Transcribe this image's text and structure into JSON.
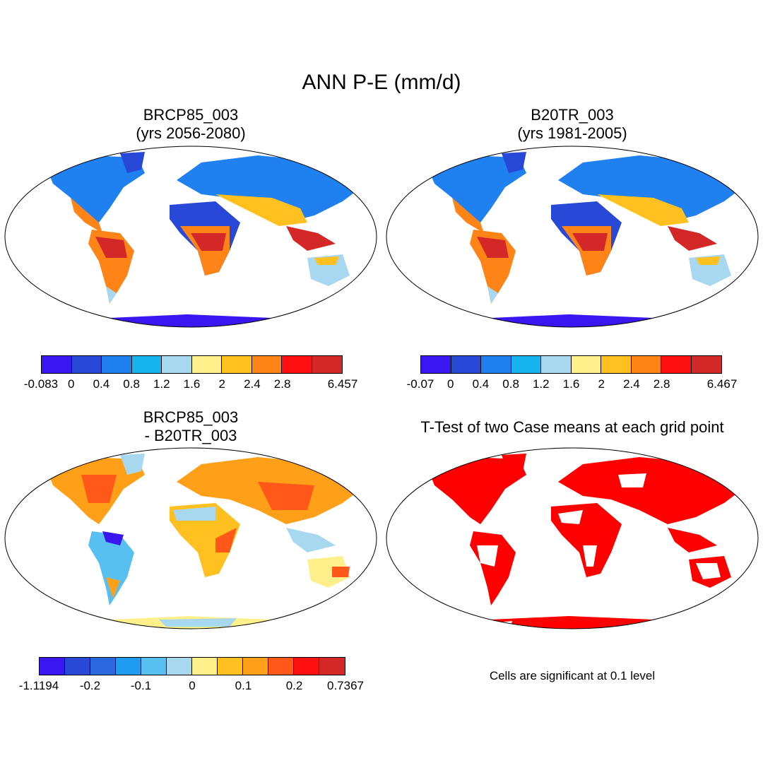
{
  "title": "ANN P-E (mm/d)",
  "panels": {
    "top_left": {
      "title_line1": "BRCP85_003",
      "title_line2": "(yrs 2056-2080)",
      "colorbar": {
        "colors": [
          "#3a16f0",
          "#2848d8",
          "#1f80f0",
          "#18b4f0",
          "#a8d8f0",
          "#fff08c",
          "#ffc020",
          "#ff8418",
          "#ff1010",
          "#d42828"
        ],
        "labels": [
          "-0.083",
          "0",
          "0.4",
          "0.8",
          "1.2",
          "1.6",
          "2",
          "2.4",
          "2.8",
          "6.457"
        ]
      }
    },
    "top_right": {
      "title_line1": "B20TR_003",
      "title_line2": "(yrs 1981-2005)",
      "colorbar": {
        "colors": [
          "#3a16f0",
          "#2848d8",
          "#1f80f0",
          "#18b4f0",
          "#a8d8f0",
          "#fff08c",
          "#ffc020",
          "#ff8418",
          "#ff1010",
          "#d42828"
        ],
        "labels": [
          "-0.07",
          "0",
          "0.4",
          "0.8",
          "1.2",
          "1.6",
          "2",
          "2.4",
          "2.8",
          "6.467"
        ]
      }
    },
    "bottom_left": {
      "title_line1": "BRCP85_003",
      "title_line2": "- B20TR_003",
      "colorbar": {
        "colors": [
          "#3a16f0",
          "#2848d8",
          "#2a68e0",
          "#1f9cf0",
          "#58c0f0",
          "#a8d8f0",
          "#fff08c",
          "#ffc020",
          "#ffa018",
          "#ff5818",
          "#ff1010",
          "#d42828"
        ],
        "labels": [
          "-1.1194",
          "-0.2",
          "-0.1",
          "0",
          "0.1",
          "0.2",
          "0.7367"
        ]
      }
    },
    "bottom_right": {
      "title": "T-Test of two Case means at each grid point",
      "note": "Cells are significant at 0.1 level",
      "sig_color": "#ff0000"
    }
  }
}
